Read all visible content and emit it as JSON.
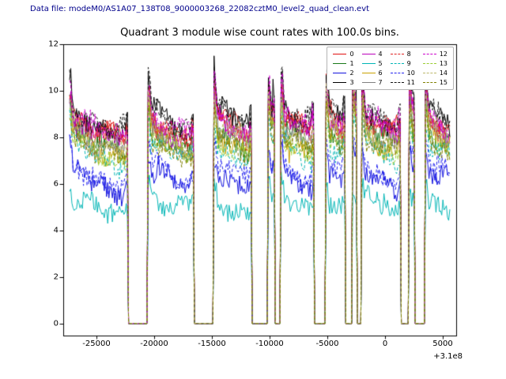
{
  "figure": {
    "header": "Data file: modeM0/AS1A07_138T08_9000003268_22082cztM0_level2_quad_clean.evt",
    "header_color": "#00008b",
    "background": "#ffffff"
  },
  "chart_data": {
    "type": "line",
    "title": "Quadrant 3 module wise count rates with 100.0s bins.",
    "xlabel": "",
    "ylabel": "",
    "x_offset_label": "+3.1e8",
    "xlim": [
      -27850,
      6150
    ],
    "ylim": [
      -0.52,
      12
    ],
    "x_ticks": [
      -25000,
      -20000,
      -15000,
      -10000,
      -5000,
      0,
      5000
    ],
    "y_ticks": [
      0,
      2,
      4,
      6,
      8,
      10,
      12
    ],
    "grid": false,
    "legend_position": "upper right",
    "legend_columns": 4,
    "bin_seconds": 100,
    "x_start": -27300,
    "x_end": 5600,
    "series": [
      {
        "name": "0",
        "color": "#e01010",
        "linestyle": "solid",
        "base": 8.3
      },
      {
        "name": "1",
        "color": "#1a7a1a",
        "linestyle": "solid",
        "base": 7.7
      },
      {
        "name": "2",
        "color": "#1010dd",
        "linestyle": "solid",
        "base": 6.0
      },
      {
        "name": "3",
        "color": "#000000",
        "linestyle": "solid",
        "base": 8.55
      },
      {
        "name": "4",
        "color": "#bb00bb",
        "linestyle": "solid",
        "base": 8.1
      },
      {
        "name": "5",
        "color": "#00b5b5",
        "linestyle": "solid",
        "base": 4.9
      },
      {
        "name": "6",
        "color": "#c8a000",
        "linestyle": "solid",
        "base": 7.5
      },
      {
        "name": "7",
        "color": "#808080",
        "linestyle": "solid",
        "base": 7.8
      },
      {
        "name": "8",
        "color": "#e02222",
        "linestyle": "dashed",
        "base": 8.2
      },
      {
        "name": "9",
        "color": "#00b5b5",
        "linestyle": "dashed",
        "base": 7.1
      },
      {
        "name": "10",
        "color": "#2222ee",
        "linestyle": "dashed",
        "base": 6.3
      },
      {
        "name": "11",
        "color": "#111111",
        "linestyle": "dashed",
        "base": 8.65
      },
      {
        "name": "12",
        "color": "#cc00cc",
        "linestyle": "dashed",
        "base": 8.35
      },
      {
        "name": "13",
        "color": "#9acd32",
        "linestyle": "dashed",
        "base": 7.3
      },
      {
        "name": "14",
        "color": "#bdb76b",
        "linestyle": "dashed",
        "base": 7.9
      },
      {
        "name": "15",
        "color": "#808000",
        "linestyle": "dashed",
        "base": 7.4
      }
    ],
    "gaps": [
      [
        -22200,
        -20600
      ],
      [
        -16500,
        -14850
      ],
      [
        -11570,
        -10130
      ],
      [
        -9500,
        -9050
      ],
      [
        -6100,
        -5150
      ],
      [
        -3430,
        -2820
      ],
      [
        -2400,
        -2070
      ],
      [
        1360,
        2040
      ],
      [
        2520,
        3400
      ]
    ],
    "peaks": [
      {
        "x": -14800,
        "y": 11.5,
        "series": 3
      },
      {
        "x": -9700,
        "y": 10.5,
        "series": 3
      },
      {
        "x": 2300,
        "y": 10.4,
        "series": 3
      }
    ],
    "value_at_gaps": 0
  }
}
